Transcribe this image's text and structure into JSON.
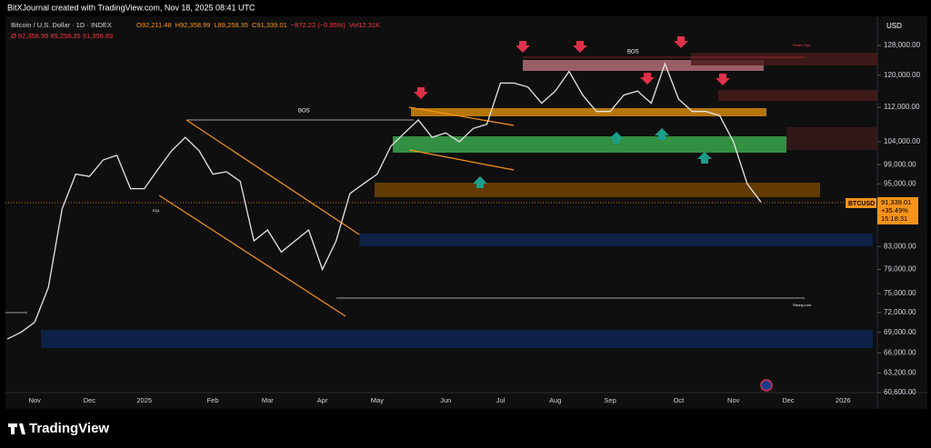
{
  "chart_data": {
    "type": "line",
    "attribution": "BitXJournal created with TradingView.com, Nov 18, 2025 08:41 UTC",
    "title": "Bitcoin / U.S. Dollar · 1D · INDEX",
    "ohlc": [
      "O92,211.48",
      "H92,358.99",
      "L89,258.35",
      "C91,339.01",
      "−872.22 (−0.95%)",
      "Vol12.31K"
    ],
    "subtitle": "Ø  92,358.99  89,258.35  91,356.69",
    "currency": "USD",
    "symbol": "BTCUSD",
    "last_price": "91,339.01",
    "change": "+35.49%",
    "countdown": "15:18:31",
    "annotations": [
      "BOS",
      "BOS",
      "Weak High",
      "Strong Low",
      "EQL"
    ],
    "brand": "TradingView",
    "color": "#e6e6e6",
    "log_scale": true,
    "categories": [
      null,
      null,
      "Nov",
      null,
      null,
      null,
      "Dec",
      null,
      null,
      null,
      "2025",
      null,
      null,
      null,
      null,
      "Feb",
      null,
      null,
      null,
      "Mar",
      null,
      null,
      null,
      "Apr",
      null,
      null,
      null,
      "May",
      null,
      null,
      null,
      null,
      "Jun",
      null,
      null,
      null,
      "Jul",
      null,
      null,
      null,
      "Aug",
      null,
      null,
      null,
      "Sep",
      null,
      null,
      null,
      null,
      "Oct",
      null,
      null,
      null,
      "Nov",
      null,
      null,
      null,
      "Dec",
      null,
      null,
      null,
      "2026"
    ],
    "values": [
      68000,
      69000,
      70500,
      76000,
      90000,
      97000,
      96500,
      100000,
      101000,
      94000,
      94000,
      98000,
      102000,
      105000,
      102000,
      97000,
      97500,
      95500,
      84000,
      86000,
      82000,
      84000,
      86000,
      79000,
      84000,
      93000,
      95000,
      97000,
      103000,
      106000,
      109000,
      105000,
      106000,
      104000,
      107000,
      108000,
      118000,
      118000,
      117000,
      113000,
      116000,
      121000,
      115000,
      111000,
      111000,
      115000,
      116000,
      113000,
      123000,
      114000,
      111000,
      111000,
      110000,
      104000,
      95000,
      91339.01,
      null,
      null,
      null,
      null,
      null,
      null
    ],
    "ylim": [
      60600,
      135700
    ],
    "yticks": [
      {
        "value": 128000,
        "label": "128,000.00"
      },
      {
        "value": 120000,
        "label": "120,000.00"
      },
      {
        "value": 112000,
        "label": "112,000.00"
      },
      {
        "value": 104000,
        "label": "104,000.00"
      },
      {
        "value": 99000,
        "label": "99,000.00"
      },
      {
        "value": 95000,
        "label": "95,000.00"
      },
      {
        "value": 83000,
        "label": "83,000.00"
      },
      {
        "value": 79000,
        "label": "79,000.00"
      },
      {
        "value": 75000,
        "label": "75,000.00"
      },
      {
        "value": 72000,
        "label": "72,000.00"
      },
      {
        "value": 69000,
        "label": "69,000.00"
      },
      {
        "value": 66000,
        "label": "66,000.00"
      },
      {
        "value": 63200,
        "label": "63,200.00"
      },
      {
        "value": 60600,
        "label": "60,600.00"
      }
    ]
  }
}
